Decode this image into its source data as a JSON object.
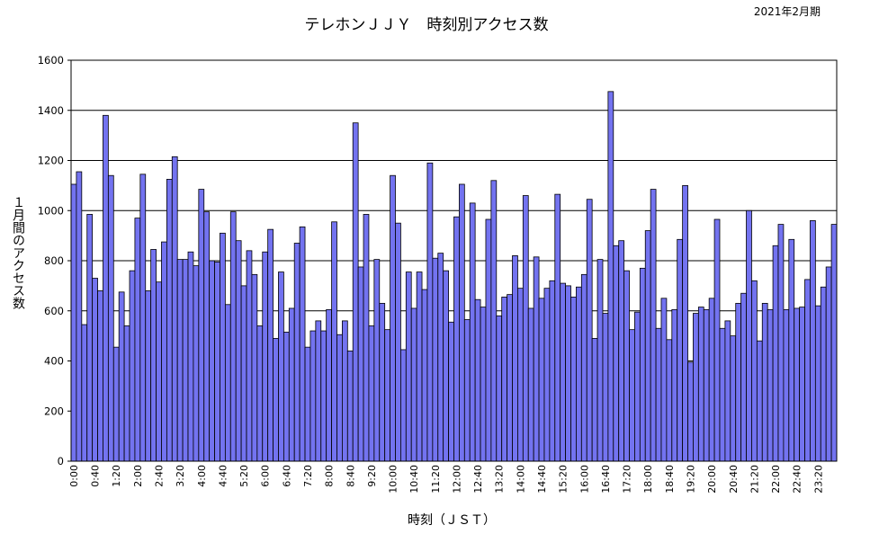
{
  "chart_data": {
    "type": "bar",
    "title": "テレホンＪＪＹ　時刻別アクセス数",
    "period_label": "2021年2月期",
    "xlabel": "時刻（ＪＳＴ）",
    "ylabel": "１月間のアクセス数",
    "ylim": [
      0,
      1600
    ],
    "yticks": [
      0,
      200,
      400,
      600,
      800,
      1000,
      1200,
      1400,
      1600
    ],
    "grid": true,
    "bar_color": "#7373f0",
    "xtick_labels": [
      "0:00",
      "0:40",
      "1:20",
      "2:00",
      "2:40",
      "3:20",
      "4:00",
      "4:40",
      "5:20",
      "6:00",
      "6:40",
      "7:20",
      "8:00",
      "8:40",
      "9:20",
      "10:00",
      "10:40",
      "11:20",
      "12:00",
      "12:40",
      "13:20",
      "14:00",
      "14:40",
      "15:20",
      "16:00",
      "16:40",
      "17:20",
      "18:00",
      "18:40",
      "19:20",
      "20:00",
      "20:40",
      "21:20",
      "22:00",
      "22:40",
      "23:20"
    ],
    "interval_minutes": 10,
    "values": [
      1105,
      1155,
      545,
      985,
      730,
      680,
      1380,
      1140,
      455,
      675,
      540,
      760,
      970,
      1145,
      680,
      845,
      715,
      875,
      1125,
      1215,
      805,
      805,
      835,
      780,
      1085,
      995,
      800,
      795,
      910,
      625,
      995,
      880,
      700,
      840,
      745,
      540,
      835,
      925,
      490,
      755,
      515,
      610,
      870,
      935,
      455,
      520,
      560,
      520,
      605,
      955,
      505,
      560,
      440,
      1350,
      775,
      985,
      540,
      805,
      630,
      525,
      1140,
      950,
      445,
      755,
      610,
      755,
      685,
      1190,
      810,
      830,
      760,
      555,
      975,
      1105,
      565,
      1030,
      645,
      615,
      965,
      1120,
      580,
      655,
      665,
      820,
      690,
      1060,
      610,
      815,
      650,
      690,
      720,
      1065,
      710,
      700,
      655,
      695,
      745,
      1045,
      490,
      805,
      590,
      1475,
      860,
      880,
      760,
      525,
      595,
      770,
      920,
      1085,
      530,
      650,
      485,
      605,
      885,
      1100,
      395,
      590,
      615,
      605,
      650,
      965,
      530,
      560,
      500,
      630,
      670,
      1000,
      720,
      480,
      630,
      605,
      860,
      945,
      605,
      885,
      610,
      615,
      725,
      960,
      620,
      695,
      775,
      945
    ]
  }
}
